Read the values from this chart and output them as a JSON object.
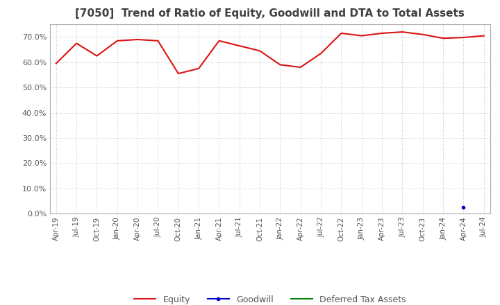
{
  "title": "[7050]  Trend of Ratio of Equity, Goodwill and DTA to Total Assets",
  "x_labels": [
    "Apr-19",
    "Jul-19",
    "Oct-19",
    "Jan-20",
    "Apr-20",
    "Jul-20",
    "Oct-20",
    "Jan-21",
    "Apr-21",
    "Jul-21",
    "Oct-21",
    "Jan-22",
    "Apr-22",
    "Jul-22",
    "Oct-22",
    "Jan-23",
    "Apr-23",
    "Jul-23",
    "Oct-23",
    "Jan-24",
    "Apr-24",
    "Jul-24"
  ],
  "equity": [
    0.595,
    0.675,
    0.625,
    0.685,
    0.69,
    0.685,
    0.555,
    0.575,
    0.685,
    0.665,
    0.645,
    0.59,
    0.58,
    0.635,
    0.715,
    0.705,
    0.715,
    0.72,
    0.71,
    0.695,
    0.698,
    0.705
  ],
  "goodwill": [
    null,
    null,
    null,
    null,
    null,
    null,
    null,
    null,
    null,
    null,
    null,
    null,
    null,
    null,
    null,
    null,
    null,
    null,
    null,
    null,
    0.025,
    null
  ],
  "dta": [
    null,
    null,
    null,
    null,
    null,
    null,
    null,
    null,
    null,
    null,
    null,
    null,
    null,
    null,
    null,
    null,
    null,
    null,
    null,
    null,
    null,
    null
  ],
  "equity_color": "#dd1111",
  "goodwill_color": "#0000cc",
  "dta_color": "#008000",
  "ylim": [
    0.0,
    0.75
  ],
  "yticks": [
    0.0,
    0.1,
    0.2,
    0.3,
    0.4,
    0.5,
    0.6,
    0.7
  ],
  "background_color": "#ffffff",
  "grid_color": "#bbbbbb",
  "title_color": "#404040",
  "legend_labels": [
    "Equity",
    "Goodwill",
    "Deferred Tax Assets"
  ]
}
